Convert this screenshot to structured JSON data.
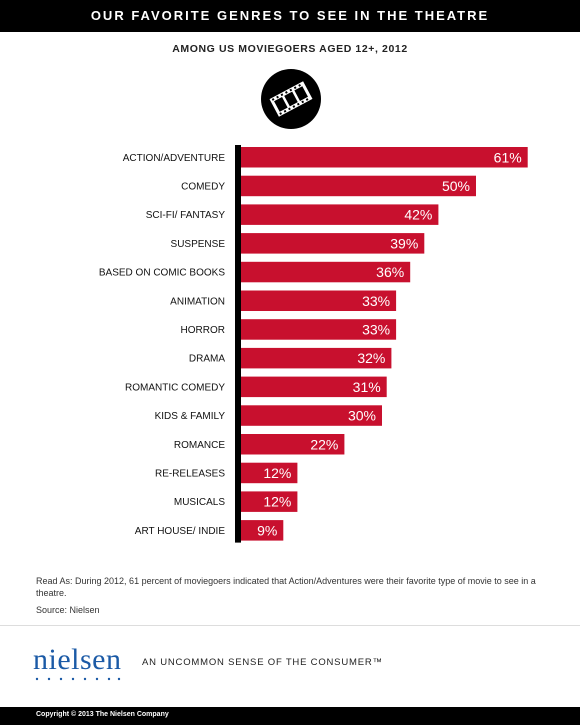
{
  "header": {
    "title": "OUR FAVORITE GENRES TO SEE IN THE THEATRE"
  },
  "subtitle": "AMONG US MOVIEGOERS AGED 12+, 2012",
  "icon": "film-strip-icon",
  "colors": {
    "bar": "#c8102e",
    "axis": "#000000",
    "header_bg": "#000000",
    "brand": "#1b5aa6"
  },
  "chart_data": {
    "type": "bar",
    "orientation": "horizontal",
    "title": "OUR FAVORITE GENRES TO SEE IN THE THEATRE",
    "subtitle": "AMONG US MOVIEGOERS AGED 12+, 2012",
    "categories": [
      "ACTION/ADVENTURE",
      "COMEDY",
      "SCI-FI/ FANTASY",
      "SUSPENSE",
      "BASED ON COMIC BOOKS",
      "ANIMATION",
      "HORROR",
      "DRAMA",
      "ROMANTIC COMEDY",
      "KIDS & FAMILY",
      "ROMANCE",
      "RE-RELEASES",
      "MUSICALS",
      "ART HOUSE/ INDIE"
    ],
    "values": [
      61,
      50,
      42,
      39,
      36,
      33,
      33,
      32,
      31,
      30,
      22,
      12,
      12,
      9
    ],
    "value_labels": [
      "61%",
      "50%",
      "42%",
      "39%",
      "36%",
      "33%",
      "33%",
      "32%",
      "31%",
      "30%",
      "22%",
      "12%",
      "12%",
      "9%"
    ],
    "unit": "%",
    "xlim": [
      0,
      100
    ],
    "grid": false,
    "legend": "none"
  },
  "notes": {
    "read_as": "Read As: During 2012, 61 percent of moviegoers indicated that Action/Adventures were their favorite type of movie to see in a theatre.",
    "source": "Source: Nielsen"
  },
  "brand": {
    "logo": "nielsen",
    "tagline": "AN UNCOMMON SENSE OF THE CONSUMER™"
  },
  "footer": {
    "copyright": "Copyright © 2013 The Nielsen Company"
  }
}
